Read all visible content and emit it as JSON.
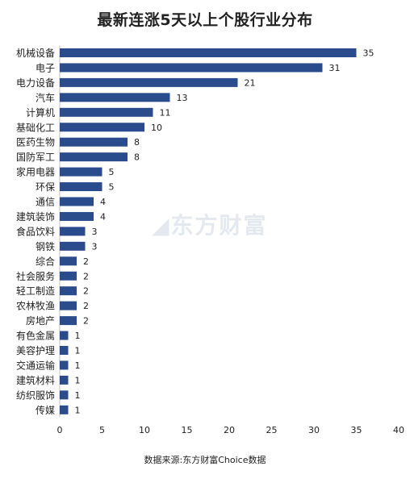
{
  "chart_data": {
    "type": "bar",
    "orientation": "horizontal",
    "title": "最新连涨5天以上个股行业分布",
    "source": "数据来源:东方财富Choice数据",
    "watermark": "东方财富",
    "bar_color": "#2b4c8c",
    "xlim": [
      0,
      40
    ],
    "xticks": [
      0,
      5,
      10,
      15,
      20,
      25,
      30,
      35,
      40
    ],
    "grid": false,
    "categories": [
      "机械设备",
      "电子",
      "电力设备",
      "汽车",
      "计算机",
      "基础化工",
      "医药生物",
      "国防军工",
      "家用电器",
      "环保",
      "通信",
      "建筑装饰",
      "食品饮料",
      "钢铁",
      "综合",
      "社会服务",
      "轻工制造",
      "农林牧渔",
      "房地产",
      "有色金属",
      "美容护理",
      "交通运输",
      "建筑材料",
      "纺织服饰",
      "传媒"
    ],
    "values": [
      35,
      31,
      21,
      13,
      11,
      10,
      8,
      8,
      5,
      5,
      4,
      4,
      3,
      3,
      2,
      2,
      2,
      2,
      2,
      1,
      1,
      1,
      1,
      1,
      1
    ]
  }
}
